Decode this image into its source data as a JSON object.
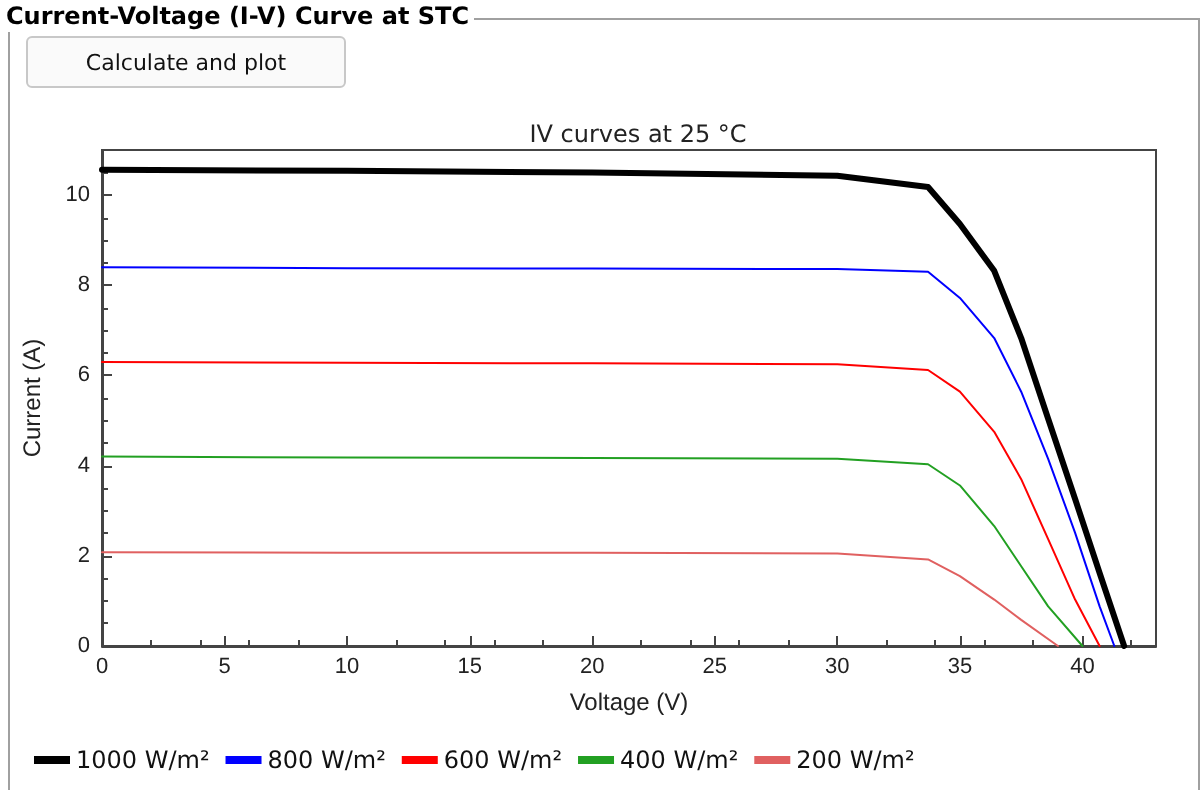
{
  "chart_data": {
    "type": "line",
    "title": "Current-Voltage (I-V) Curve at STC",
    "subtitle": "IV curves at 25 °C",
    "annotations": [
      "Calculate and plot"
    ],
    "xlabel": "Voltage (V)",
    "ylabel": "Current (A)",
    "xlim": [
      0,
      43
    ],
    "xticks": [
      0,
      5,
      10,
      15,
      20,
      25,
      30,
      35,
      40
    ],
    "ylim": [
      0,
      11
    ],
    "yticks": [
      0,
      2,
      4,
      6,
      8,
      10
    ],
    "grid": false,
    "legend": "bottom left",
    "marker": "none",
    "line_style": "solid",
    "series": [
      {
        "name": "1000 W/m²",
        "color": "#000000",
        "x": [
          0,
          10,
          20,
          30,
          33.7,
          35.0,
          36.4,
          37.5,
          38.6,
          39.7,
          40.7,
          41.7
        ],
        "values": [
          10.56,
          10.54,
          10.5,
          10.43,
          10.18,
          9.36,
          8.32,
          6.83,
          5.04,
          3.26,
          1.62,
          0
        ]
      },
      {
        "name": "800 W/m²",
        "color": "#0000ff",
        "x": [
          0,
          10,
          20,
          30,
          33.7,
          35.0,
          36.4,
          37.5,
          38.6,
          39.7,
          40.7,
          41.3
        ],
        "values": [
          8.4,
          8.38,
          8.37,
          8.36,
          8.3,
          7.72,
          6.83,
          5.64,
          4.15,
          2.51,
          0.88,
          0
        ]
      },
      {
        "name": "600 W/m²",
        "color": "#ff0000",
        "x": [
          0,
          10,
          20,
          30,
          33.7,
          35.0,
          36.4,
          37.5,
          38.6,
          39.7,
          40.7
        ],
        "values": [
          6.3,
          6.28,
          6.27,
          6.25,
          6.12,
          5.64,
          4.75,
          3.7,
          2.37,
          1.03,
          0
        ]
      },
      {
        "name": "400 W/m²",
        "color": "#22a022",
        "x": [
          0,
          10,
          20,
          30,
          33.7,
          35.0,
          36.4,
          37.5,
          38.6,
          40.0
        ],
        "values": [
          4.2,
          4.18,
          4.17,
          4.15,
          4.03,
          3.56,
          2.66,
          1.77,
          0.88,
          0
        ]
      },
      {
        "name": "200 W/m²",
        "color": "#e06060",
        "x": [
          0,
          10,
          20,
          30,
          33.7,
          35.0,
          36.4,
          37.5,
          39.0
        ],
        "values": [
          2.08,
          2.07,
          2.07,
          2.05,
          1.92,
          1.55,
          1.03,
          0.58,
          0
        ]
      }
    ]
  }
}
